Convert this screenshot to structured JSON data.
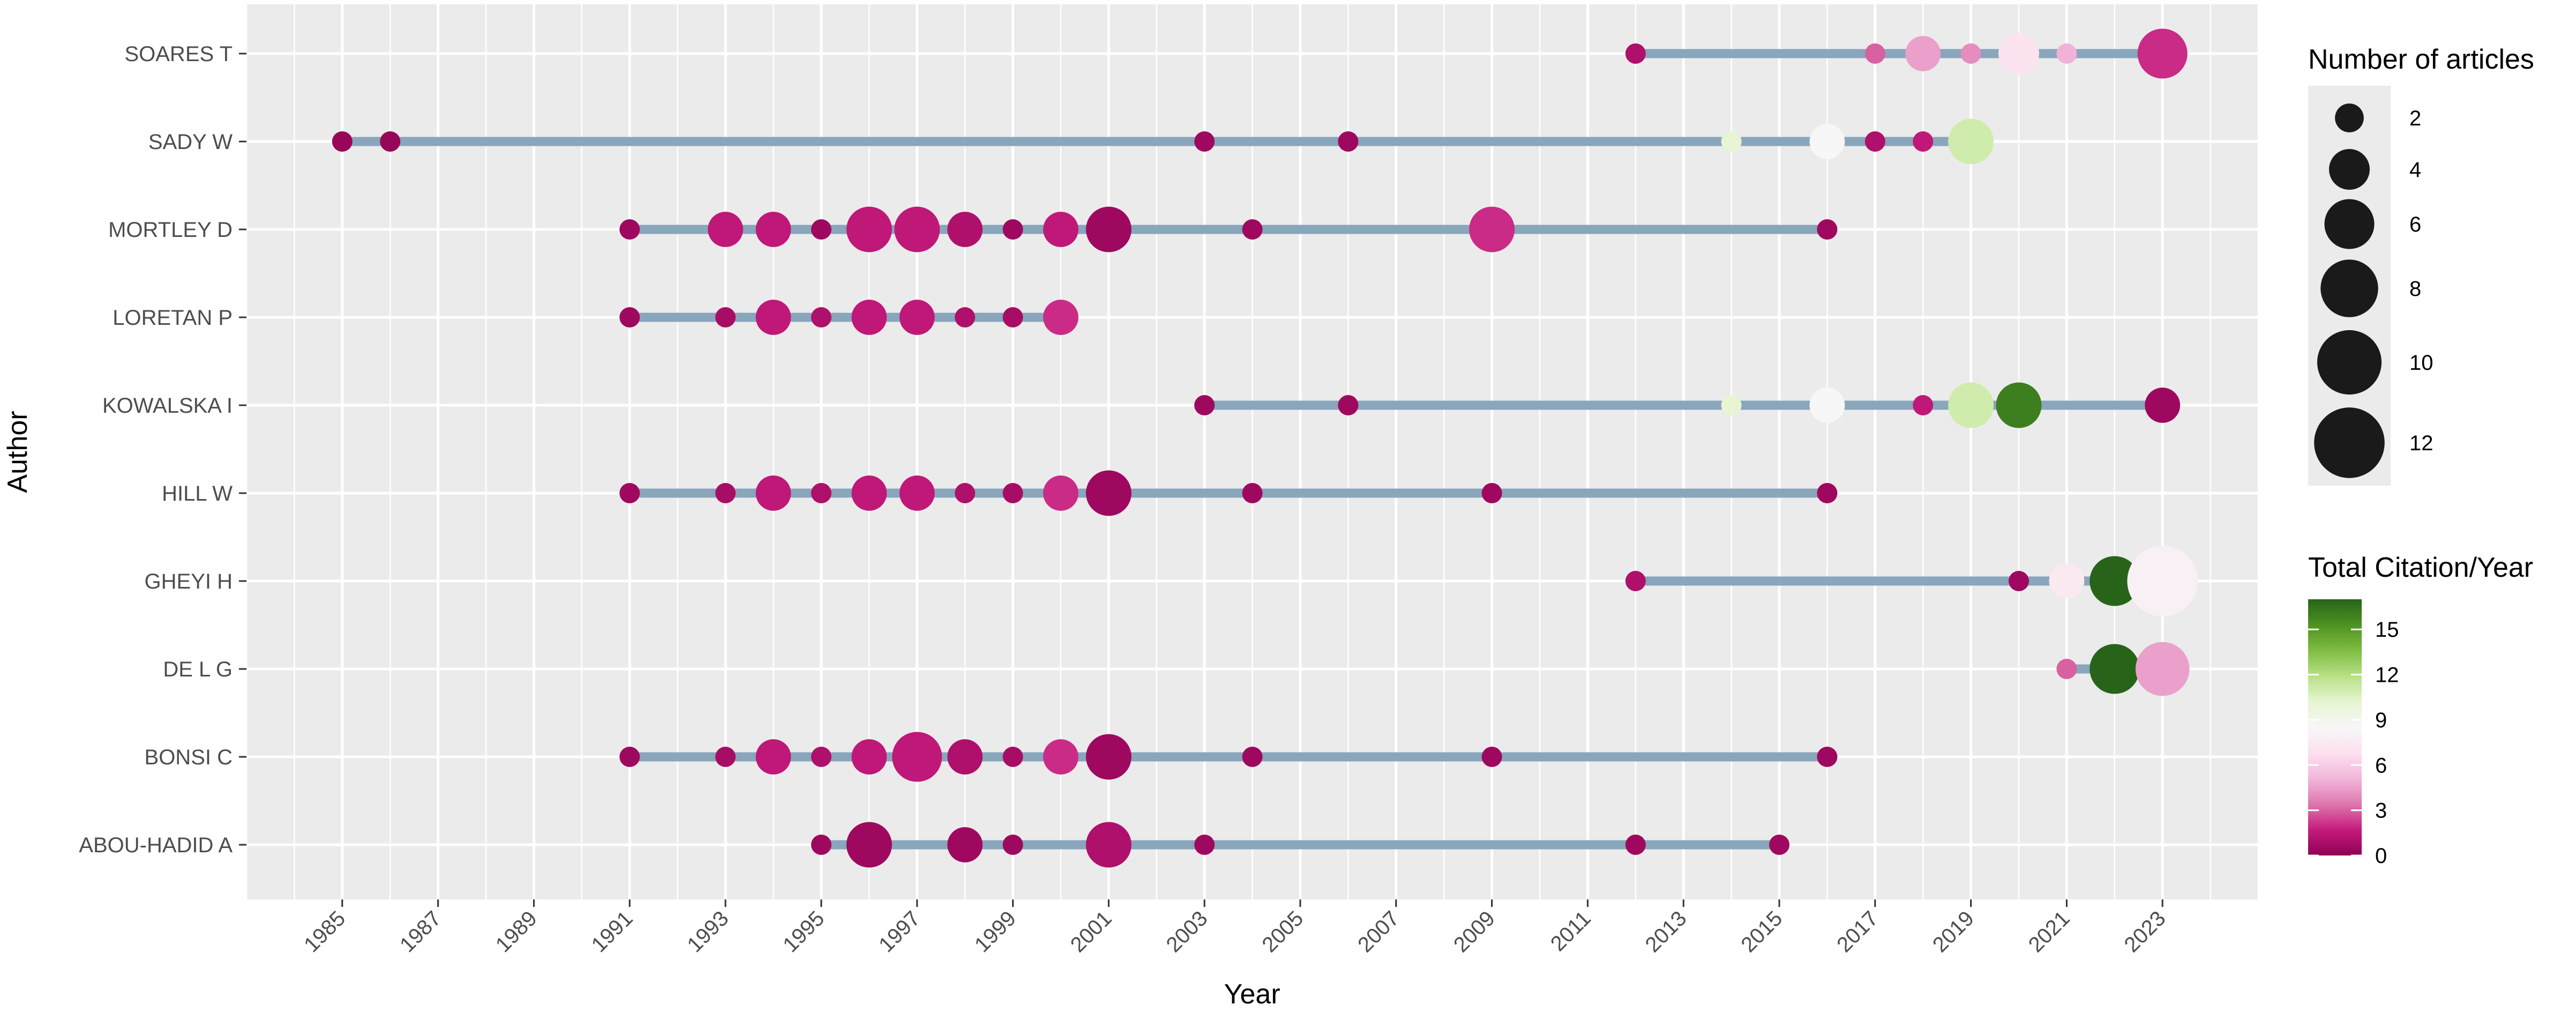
{
  "chart_data": {
    "type": "scatter",
    "xlabel": "Year",
    "ylabel": "Author",
    "xlim": [
      1983,
      2025
    ],
    "x_ticks": [
      1985,
      1987,
      1989,
      1991,
      1993,
      1995,
      1997,
      1999,
      2001,
      2003,
      2005,
      2007,
      2009,
      2011,
      2013,
      2015,
      2017,
      2019,
      2021,
      2023
    ],
    "categories": [
      "SOARES T",
      "SADY W",
      "MORTLEY D",
      "LORETAN P",
      "KOWALSKA I",
      "HILL W",
      "GHEYI H",
      "DE L G",
      "BONSI C",
      "ABOU-HADID A"
    ],
    "authors": [
      {
        "name": "SOARES T",
        "range": [
          2012,
          2023
        ],
        "points": [
          {
            "x": 2012,
            "articles": 1,
            "tc": 1
          },
          {
            "x": 2017,
            "articles": 1,
            "tc": 3
          },
          {
            "x": 2018,
            "articles": 3,
            "tc": 4.5
          },
          {
            "x": 2019,
            "articles": 1,
            "tc": 4
          },
          {
            "x": 2020,
            "articles": 4,
            "tc": 7
          },
          {
            "x": 2021,
            "articles": 1,
            "tc": 5
          },
          {
            "x": 2023,
            "articles": 6,
            "tc": 2
          }
        ]
      },
      {
        "name": "SADY W",
        "range": [
          1985,
          2019
        ],
        "points": [
          {
            "x": 1985,
            "articles": 1,
            "tc": 0.3
          },
          {
            "x": 1986,
            "articles": 1,
            "tc": 0.3
          },
          {
            "x": 2003,
            "articles": 1,
            "tc": 0.5
          },
          {
            "x": 2006,
            "articles": 1,
            "tc": 0.5
          },
          {
            "x": 2014,
            "articles": 1,
            "tc": 10
          },
          {
            "x": 2016,
            "articles": 3,
            "tc": 8.5
          },
          {
            "x": 2017,
            "articles": 1,
            "tc": 1
          },
          {
            "x": 2018,
            "articles": 1,
            "tc": 1.5
          },
          {
            "x": 2019,
            "articles": 5,
            "tc": 11
          }
        ]
      },
      {
        "name": "MORTLEY D",
        "range": [
          1991,
          2016
        ],
        "points": [
          {
            "x": 1991,
            "articles": 1,
            "tc": 0.5
          },
          {
            "x": 1993,
            "articles": 3,
            "tc": 1.5
          },
          {
            "x": 1994,
            "articles": 3,
            "tc": 1.5
          },
          {
            "x": 1995,
            "articles": 1,
            "tc": 0.5
          },
          {
            "x": 1996,
            "articles": 5,
            "tc": 1.5
          },
          {
            "x": 1997,
            "articles": 5,
            "tc": 1.5
          },
          {
            "x": 1998,
            "articles": 3,
            "tc": 1
          },
          {
            "x": 1999,
            "articles": 1,
            "tc": 0.5
          },
          {
            "x": 2000,
            "articles": 3,
            "tc": 1.5
          },
          {
            "x": 2001,
            "articles": 5,
            "tc": 0.5
          },
          {
            "x": 2004,
            "articles": 1,
            "tc": 0.5
          },
          {
            "x": 2009,
            "articles": 5,
            "tc": 2
          },
          {
            "x": 2016,
            "articles": 1,
            "tc": 0.5
          }
        ]
      },
      {
        "name": "LORETAN P",
        "range": [
          1991,
          2000
        ],
        "points": [
          {
            "x": 1991,
            "articles": 1,
            "tc": 0.5
          },
          {
            "x": 1993,
            "articles": 1,
            "tc": 0.8
          },
          {
            "x": 1994,
            "articles": 3,
            "tc": 1.5
          },
          {
            "x": 1995,
            "articles": 1,
            "tc": 1
          },
          {
            "x": 1996,
            "articles": 3,
            "tc": 1.5
          },
          {
            "x": 1997,
            "articles": 3,
            "tc": 1.5
          },
          {
            "x": 1998,
            "articles": 1,
            "tc": 1
          },
          {
            "x": 1999,
            "articles": 1,
            "tc": 0.8
          },
          {
            "x": 2000,
            "articles": 3,
            "tc": 2
          }
        ]
      },
      {
        "name": "KOWALSKA I",
        "range": [
          2003,
          2023
        ],
        "points": [
          {
            "x": 2003,
            "articles": 1,
            "tc": 0.5
          },
          {
            "x": 2006,
            "articles": 1,
            "tc": 0.5
          },
          {
            "x": 2014,
            "articles": 1,
            "tc": 10
          },
          {
            "x": 2016,
            "articles": 3,
            "tc": 8.5
          },
          {
            "x": 2018,
            "articles": 1,
            "tc": 1.5
          },
          {
            "x": 2019,
            "articles": 5,
            "tc": 11
          },
          {
            "x": 2020,
            "articles": 5,
            "tc": 16
          },
          {
            "x": 2023,
            "articles": 3,
            "tc": 0.5
          }
        ]
      },
      {
        "name": "HILL W",
        "range": [
          1991,
          2016
        ],
        "points": [
          {
            "x": 1991,
            "articles": 1,
            "tc": 0.5
          },
          {
            "x": 1993,
            "articles": 1,
            "tc": 0.8
          },
          {
            "x": 1994,
            "articles": 3,
            "tc": 1.5
          },
          {
            "x": 1995,
            "articles": 1,
            "tc": 1
          },
          {
            "x": 1996,
            "articles": 3,
            "tc": 1.5
          },
          {
            "x": 1997,
            "articles": 3,
            "tc": 1.5
          },
          {
            "x": 1998,
            "articles": 1,
            "tc": 1
          },
          {
            "x": 1999,
            "articles": 1,
            "tc": 0.8
          },
          {
            "x": 2000,
            "articles": 3,
            "tc": 2
          },
          {
            "x": 2001,
            "articles": 5,
            "tc": 0.5
          },
          {
            "x": 2004,
            "articles": 1,
            "tc": 0.5
          },
          {
            "x": 2009,
            "articles": 1,
            "tc": 0.5
          },
          {
            "x": 2016,
            "articles": 1,
            "tc": 0.5
          }
        ]
      },
      {
        "name": "GHEYI H",
        "range": [
          2012,
          2023
        ],
        "points": [
          {
            "x": 2012,
            "articles": 1,
            "tc": 1
          },
          {
            "x": 2020,
            "articles": 1,
            "tc": 0.5
          },
          {
            "x": 2021,
            "articles": 3,
            "tc": 7.5
          },
          {
            "x": 2022,
            "articles": 6,
            "tc": 17
          },
          {
            "x": 2023,
            "articles": 12,
            "tc": 8
          }
        ]
      },
      {
        "name": "DE L G",
        "range": [
          2021,
          2023
        ],
        "points": [
          {
            "x": 2021,
            "articles": 1,
            "tc": 3
          },
          {
            "x": 2022,
            "articles": 6,
            "tc": 17
          },
          {
            "x": 2023,
            "articles": 7,
            "tc": 4.5
          }
        ]
      },
      {
        "name": "BONSI C",
        "range": [
          1991,
          2016
        ],
        "points": [
          {
            "x": 1991,
            "articles": 1,
            "tc": 0.5
          },
          {
            "x": 1993,
            "articles": 1,
            "tc": 0.8
          },
          {
            "x": 1994,
            "articles": 3,
            "tc": 1.5
          },
          {
            "x": 1995,
            "articles": 1,
            "tc": 1
          },
          {
            "x": 1996,
            "articles": 3,
            "tc": 1.5
          },
          {
            "x": 1997,
            "articles": 6,
            "tc": 1.5
          },
          {
            "x": 1998,
            "articles": 3,
            "tc": 1
          },
          {
            "x": 1999,
            "articles": 1,
            "tc": 0.8
          },
          {
            "x": 2000,
            "articles": 3,
            "tc": 2
          },
          {
            "x": 2001,
            "articles": 5,
            "tc": 0.5
          },
          {
            "x": 2004,
            "articles": 1,
            "tc": 0.5
          },
          {
            "x": 2009,
            "articles": 1,
            "tc": 0.5
          },
          {
            "x": 2016,
            "articles": 1,
            "tc": 0.5
          }
        ]
      },
      {
        "name": "ABOU-HADID A",
        "range": [
          1995,
          2015
        ],
        "points": [
          {
            "x": 1995,
            "articles": 1,
            "tc": 0.5
          },
          {
            "x": 1996,
            "articles": 5,
            "tc": 0.5
          },
          {
            "x": 1998,
            "articles": 3,
            "tc": 0.5
          },
          {
            "x": 1999,
            "articles": 1,
            "tc": 0.5
          },
          {
            "x": 2001,
            "articles": 5,
            "tc": 1
          },
          {
            "x": 2003,
            "articles": 1,
            "tc": 0.5
          },
          {
            "x": 2012,
            "articles": 1,
            "tc": 0.5
          },
          {
            "x": 2015,
            "articles": 1,
            "tc": 0.5
          }
        ]
      }
    ],
    "legend_size": {
      "title": "Number of articles",
      "values": [
        2,
        4,
        6,
        8,
        10,
        12
      ]
    },
    "legend_color": {
      "title": "Total Citation/Year",
      "ticks": [
        0,
        3,
        6,
        9,
        12,
        15
      ],
      "range": [
        0,
        17
      ]
    },
    "colors": {
      "panel": "#ebebeb",
      "grid": "#ffffff",
      "segment": "#89a6bb",
      "gradient": [
        "#8e0152",
        "#c51b7d",
        "#de77ae",
        "#f1b6da",
        "#fde0ef",
        "#f7f7f7",
        "#e6f5d0",
        "#b8e186",
        "#7fbc41",
        "#4d9221",
        "#276419"
      ]
    },
    "grid": true,
    "legend_position": "right"
  }
}
